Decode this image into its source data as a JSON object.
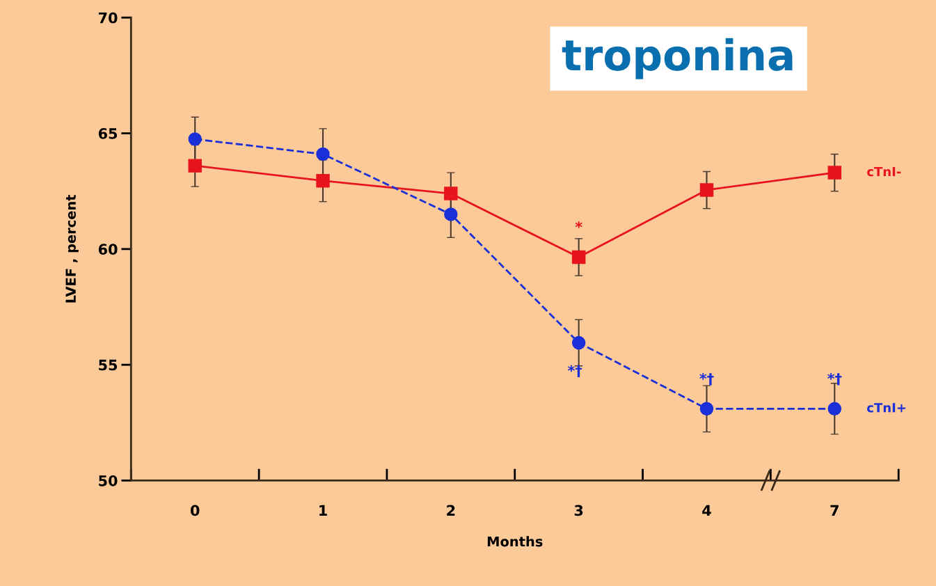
{
  "chart_data": {
    "type": "line",
    "title": "troponina",
    "xlabel": "Months",
    "ylabel": "LVEF , percent",
    "categories": [
      "0",
      "1",
      "2",
      "3",
      "4",
      "7"
    ],
    "series": [
      {
        "name": "cTnI-",
        "color": "#e8141c",
        "marker": "square",
        "line_style": "solid",
        "values": [
          63.6,
          62.95,
          62.4,
          59.65,
          62.55,
          63.3
        ],
        "errors": [
          0.9,
          0.9,
          0.9,
          0.8,
          0.8,
          0.8
        ]
      },
      {
        "name": "cTnI+",
        "color": "#1a2fd8",
        "marker": "circle",
        "line_style": "dashed",
        "values": [
          64.75,
          64.1,
          61.5,
          55.95,
          53.1,
          53.1
        ],
        "errors": [
          0.95,
          1.1,
          1.0,
          1.0,
          1.0,
          1.1
        ]
      }
    ],
    "annotations": [
      {
        "text": "*",
        "x": "3",
        "y": 59.65
      },
      {
        "text": "*†",
        "x": "3",
        "y": 55.95
      },
      {
        "text": "*†",
        "x": "4",
        "y": 53.1
      },
      {
        "text": "*†",
        "x": "7",
        "y": 53.1
      }
    ],
    "ylim": [
      50,
      70
    ],
    "yticks": [
      50,
      55,
      60,
      65,
      70
    ],
    "grid": false,
    "legend": false
  }
}
